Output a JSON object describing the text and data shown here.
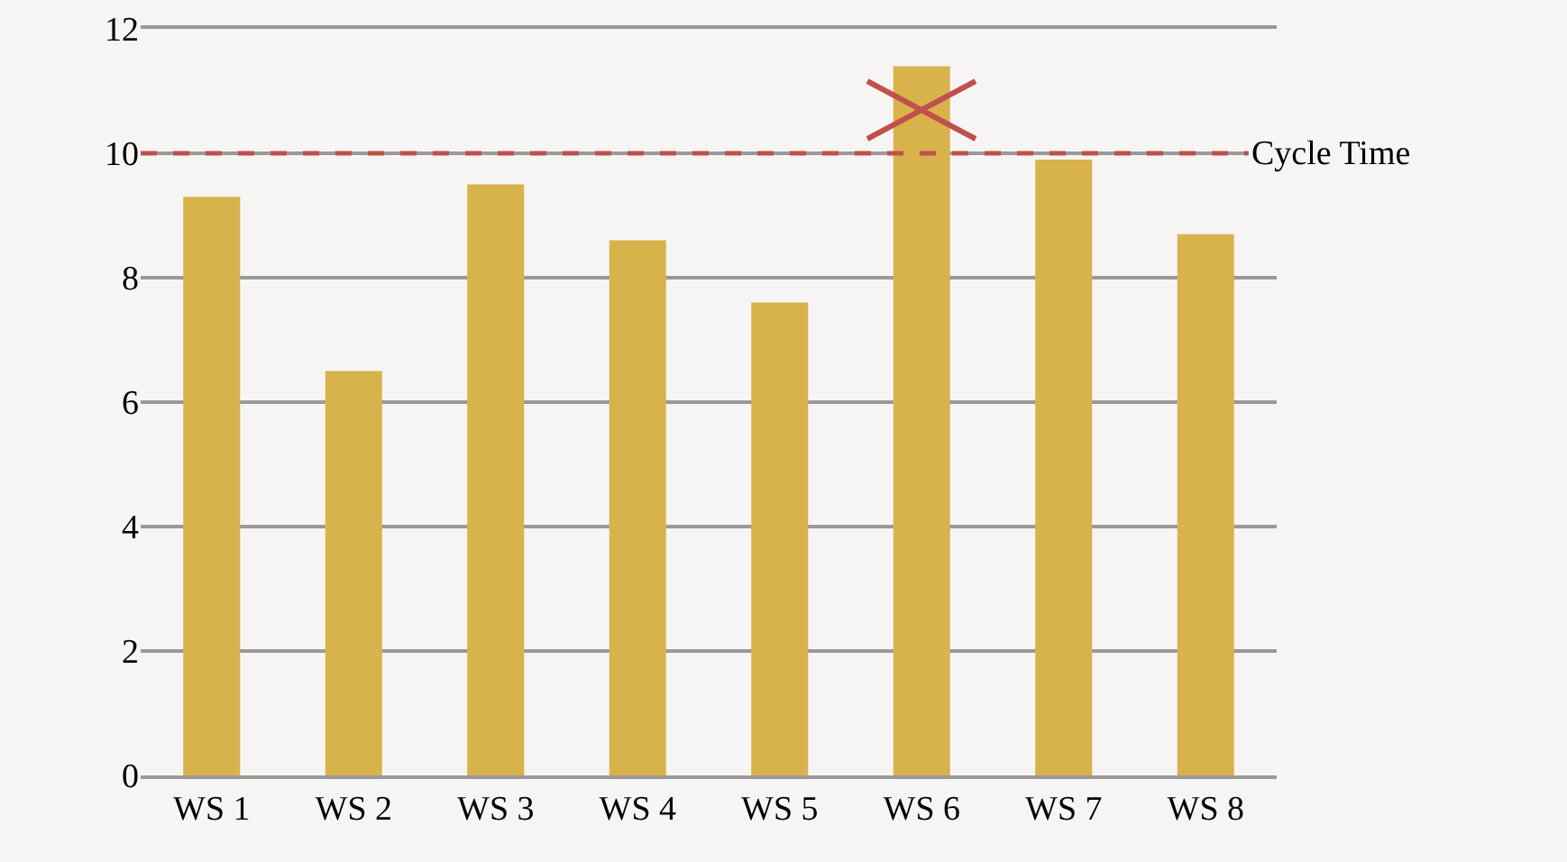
{
  "chart_data": {
    "type": "bar",
    "categories": [
      "WS 1",
      "WS 2",
      "WS 3",
      "WS 4",
      "WS 5",
      "WS 6",
      "WS 7",
      "WS 8"
    ],
    "values": [
      9.3,
      6.5,
      9.5,
      8.6,
      7.6,
      11.4,
      9.9,
      8.7
    ],
    "color": "#d8b24a",
    "ylim": [
      0,
      12
    ],
    "yticks": [
      0,
      2,
      4,
      6,
      8,
      10,
      12
    ],
    "grid": "y",
    "ref_lines": [
      {
        "axis": "y",
        "value": 10,
        "label": "Cycle Time",
        "color": "#c0504d",
        "line_style": "dashed"
      }
    ]
  }
}
